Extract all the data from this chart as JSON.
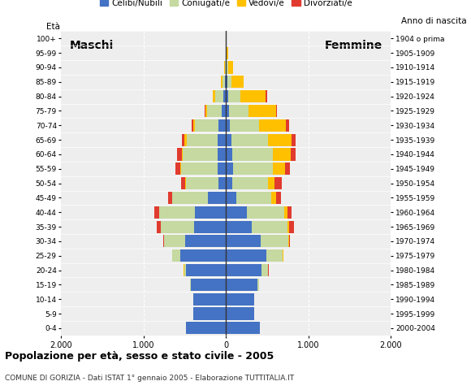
{
  "age_groups": [
    "0-4",
    "5-9",
    "10-14",
    "15-19",
    "20-24",
    "25-29",
    "30-34",
    "35-39",
    "40-44",
    "45-49",
    "50-54",
    "55-59",
    "60-64",
    "65-69",
    "70-74",
    "75-79",
    "80-84",
    "85-89",
    "90-94",
    "95-99",
    "100+"
  ],
  "birth_years": [
    "2000-2004",
    "1995-1999",
    "1990-1994",
    "1985-1989",
    "1980-1984",
    "1975-1979",
    "1970-1974",
    "1965-1969",
    "1960-1964",
    "1955-1959",
    "1950-1954",
    "1945-1949",
    "1940-1944",
    "1935-1939",
    "1930-1934",
    "1925-1929",
    "1920-1924",
    "1915-1919",
    "1910-1914",
    "1905-1909",
    "1904 o prima"
  ],
  "male": {
    "celibi": [
      490,
      400,
      400,
      430,
      490,
      560,
      500,
      390,
      380,
      220,
      90,
      100,
      100,
      100,
      90,
      55,
      35,
      15,
      5,
      2,
      0
    ],
    "coniugati": [
      0,
      0,
      0,
      5,
      20,
      90,
      250,
      400,
      430,
      430,
      400,
      450,
      430,
      380,
      290,
      180,
      95,
      30,
      10,
      3,
      0
    ],
    "vedovi": [
      0,
      0,
      0,
      0,
      2,
      2,
      2,
      2,
      3,
      3,
      5,
      8,
      10,
      25,
      20,
      20,
      30,
      20,
      5,
      2,
      0
    ],
    "divorziati": [
      0,
      0,
      0,
      0,
      2,
      5,
      15,
      45,
      55,
      50,
      50,
      55,
      55,
      35,
      15,
      8,
      5,
      0,
      0,
      0,
      0
    ]
  },
  "female": {
    "nubili": [
      410,
      340,
      340,
      380,
      430,
      490,
      420,
      310,
      250,
      120,
      75,
      80,
      75,
      65,
      50,
      35,
      25,
      15,
      8,
      3,
      0
    ],
    "coniugate": [
      0,
      0,
      5,
      20,
      80,
      200,
      330,
      430,
      460,
      430,
      430,
      490,
      490,
      440,
      350,
      240,
      150,
      50,
      20,
      5,
      0
    ],
    "vedove": [
      0,
      0,
      0,
      2,
      2,
      5,
      10,
      20,
      30,
      60,
      80,
      150,
      220,
      290,
      330,
      330,
      300,
      150,
      55,
      15,
      0
    ],
    "divorziate": [
      0,
      0,
      0,
      0,
      2,
      5,
      15,
      60,
      55,
      60,
      90,
      55,
      55,
      45,
      30,
      15,
      25,
      0,
      0,
      0,
      0
    ]
  },
  "colors": {
    "celibi": "#4472c4",
    "coniugati": "#c5d9a0",
    "vedovi": "#ffc000",
    "divorziati": "#e03b2e"
  },
  "title": "Popolazione per età, sesso e stato civile - 2005",
  "subtitle": "COMUNE DI GORIZIA - Dati ISTAT 1° gennaio 2005 - Elaborazione TUTTITALIA.IT",
  "label_maschi": "Maschi",
  "label_femmine": "Femmine",
  "ylabel_left": "Età",
  "ylabel_right": "Anno di nascita",
  "xlim": 2000,
  "legend_labels": [
    "Celibi/Nubili",
    "Coniugati/e",
    "Vedovi/e",
    "Divorziati/e"
  ],
  "bg_color": "#eeeeee",
  "bar_height": 0.85
}
